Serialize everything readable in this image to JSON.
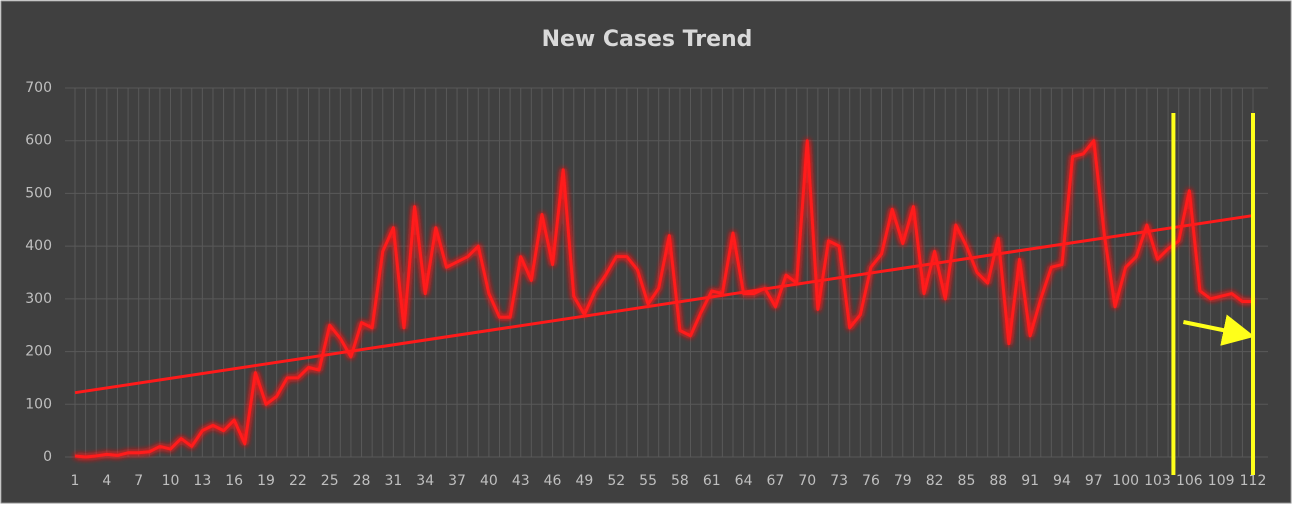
{
  "chart_data": {
    "type": "line",
    "title": "New Cases Trend",
    "x": [
      1,
      2,
      3,
      4,
      5,
      6,
      7,
      8,
      9,
      10,
      11,
      12,
      13,
      14,
      15,
      16,
      17,
      18,
      19,
      20,
      21,
      22,
      23,
      24,
      25,
      26,
      27,
      28,
      29,
      30,
      31,
      32,
      33,
      34,
      35,
      36,
      37,
      38,
      39,
      40,
      41,
      42,
      43,
      44,
      45,
      46,
      47,
      48,
      49,
      50,
      51,
      52,
      53,
      54,
      55,
      56,
      57,
      58,
      59,
      60,
      61,
      62,
      63,
      64,
      65,
      66,
      67,
      68,
      69,
      70,
      71,
      72,
      73,
      74,
      75,
      76,
      77,
      78,
      79,
      80,
      81,
      82,
      83,
      84,
      85,
      86,
      87,
      88,
      89,
      90,
      91,
      92,
      93,
      94,
      95,
      96,
      97,
      98,
      99,
      100,
      101,
      102,
      103,
      104,
      105,
      106,
      107,
      108,
      109,
      110,
      111,
      112
    ],
    "xlim": [
      1,
      112
    ],
    "xticks": [
      1,
      4,
      7,
      10,
      13,
      16,
      19,
      22,
      25,
      28,
      31,
      34,
      37,
      40,
      43,
      46,
      49,
      52,
      55,
      58,
      61,
      64,
      67,
      70,
      73,
      76,
      79,
      82,
      85,
      88,
      91,
      94,
      97,
      100,
      103,
      106,
      109,
      112
    ],
    "ylim": [
      0,
      700
    ],
    "yticks": [
      0,
      100,
      200,
      300,
      400,
      500,
      600,
      700
    ],
    "grid": true,
    "series": [
      {
        "color": "#ff1a1a",
        "values": [
          2,
          0,
          2,
          5,
          3,
          8,
          8,
          10,
          20,
          15,
          35,
          20,
          50,
          60,
          50,
          70,
          25,
          160,
          100,
          115,
          150,
          150,
          170,
          165,
          250,
          225,
          190,
          255,
          245,
          390,
          435,
          245,
          475,
          310,
          435,
          360,
          370,
          380,
          400,
          310,
          265,
          265,
          380,
          335,
          460,
          365,
          545,
          305,
          270,
          315,
          345,
          380,
          380,
          355,
          290,
          320,
          420,
          240,
          230,
          275,
          315,
          310,
          425,
          310,
          310,
          320,
          285,
          345,
          330,
          600,
          280,
          410,
          400,
          245,
          270,
          360,
          385,
          470,
          405,
          475,
          310,
          390,
          300,
          440,
          400,
          350,
          330,
          415,
          215,
          375,
          230,
          300,
          360,
          365,
          570,
          575,
          600,
          420,
          285,
          360,
          380,
          440,
          375,
          395,
          410,
          505,
          315,
          300,
          305,
          310,
          295,
          295
        ]
      }
    ],
    "trendline": {
      "color": "#ff1a1a",
      "x": [
        1,
        112
      ],
      "values": [
        122,
        458
      ]
    },
    "highlight": {
      "color": "#ffff1a",
      "x": [
        104.5,
        112
      ]
    }
  }
}
